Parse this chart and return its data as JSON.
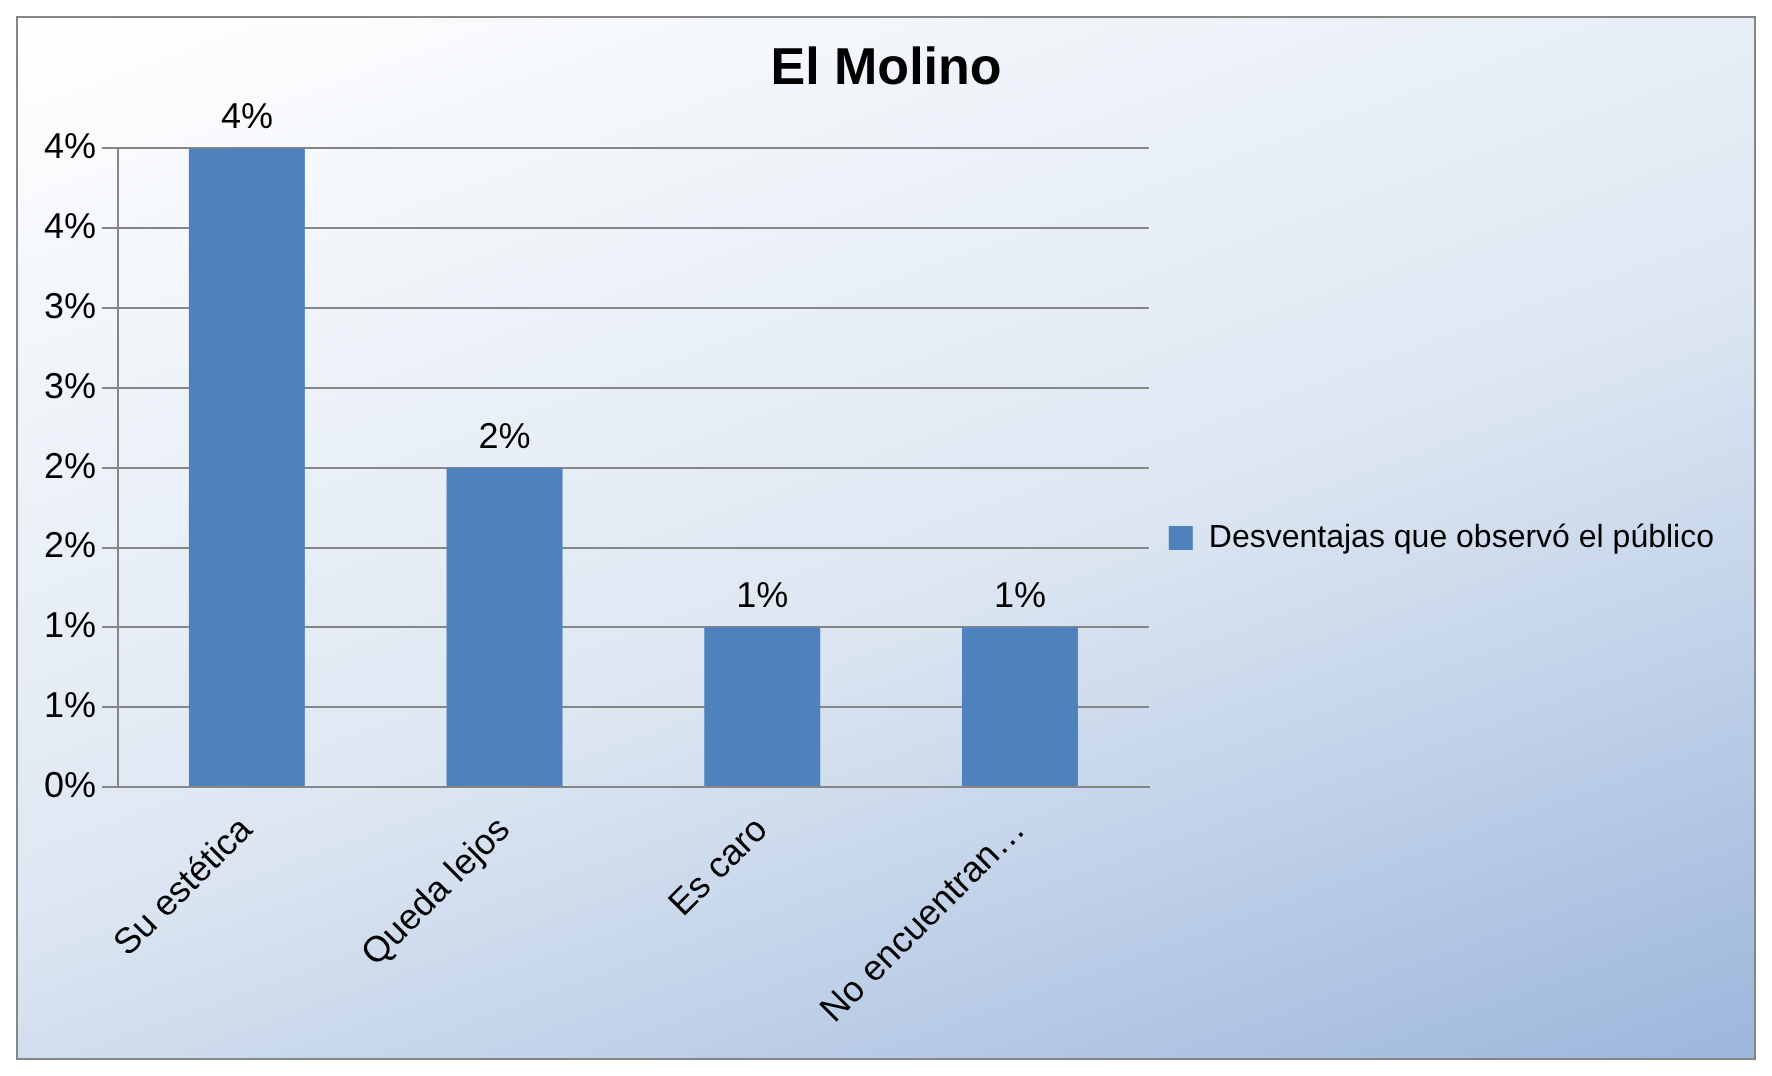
{
  "chart_data": {
    "type": "bar",
    "title": "El Molino",
    "categories": [
      "Su estética",
      "Queda lejos",
      "Es caro",
      "No encuentran…"
    ],
    "series": [
      {
        "name": "Desventajas que observó el público",
        "color": "#4f81bd",
        "values": [
          4,
          2,
          1,
          1
        ]
      }
    ],
    "value_labels": [
      "4%",
      "2%",
      "1%",
      "1%"
    ],
    "ylim": [
      0,
      4
    ],
    "yticks": [
      {
        "value": 0,
        "label": "0%"
      },
      {
        "value": 0.5,
        "label": "1%"
      },
      {
        "value": 1,
        "label": "1%"
      },
      {
        "value": 1.5,
        "label": "2%"
      },
      {
        "value": 2,
        "label": "2%"
      },
      {
        "value": 2.5,
        "label": "3%"
      },
      {
        "value": 3,
        "label": "3%"
      },
      {
        "value": 3.5,
        "label": "4%"
      },
      {
        "value": 4,
        "label": "4%"
      }
    ],
    "grid": "y",
    "legend": "right"
  }
}
